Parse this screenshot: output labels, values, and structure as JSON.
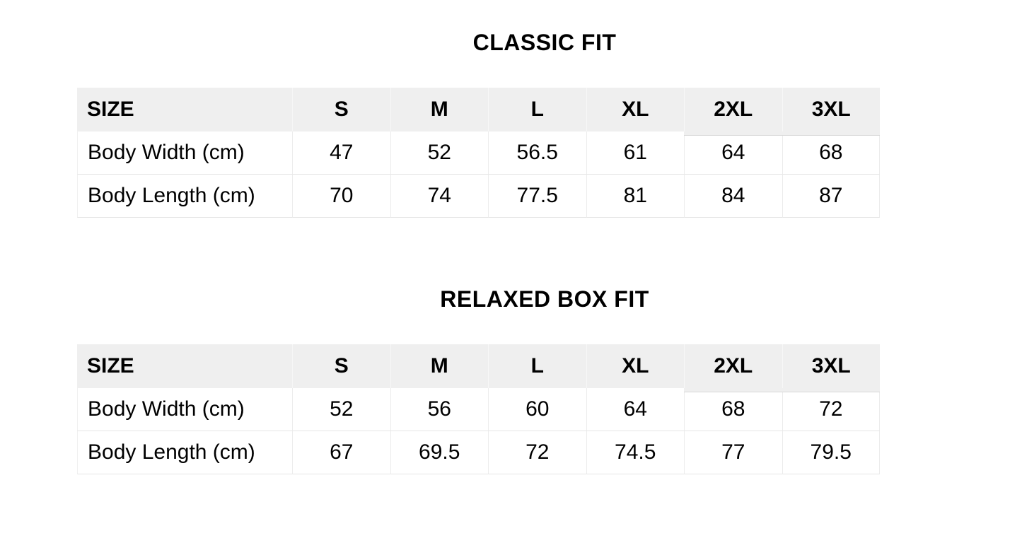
{
  "sections": [
    {
      "title": "CLASSIC FIT",
      "table": {
        "corner_header": "SIZE",
        "size_columns": [
          "S",
          "M",
          "L",
          "XL",
          "2XL",
          "3XL"
        ],
        "rows": [
          {
            "label": "Body Width (cm)",
            "values": [
              "47",
              "52",
              "56.5",
              "61",
              "64",
              "68"
            ]
          },
          {
            "label": "Body Length (cm)",
            "values": [
              "70",
              "74",
              "77.5",
              "81",
              "84",
              "87"
            ]
          }
        ]
      }
    },
    {
      "title": "RELAXED BOX FIT",
      "table": {
        "corner_header": "SIZE",
        "size_columns": [
          "S",
          "M",
          "L",
          "XL",
          "2XL",
          "3XL"
        ],
        "rows": [
          {
            "label": "Body Width (cm)",
            "values": [
              "52",
              "56",
              "60",
              "64",
              "68",
              "72"
            ]
          },
          {
            "label": "Body Length (cm)",
            "values": [
              "67",
              "69.5",
              "72",
              "74.5",
              "77",
              "79.5"
            ]
          }
        ]
      }
    }
  ],
  "colors": {
    "page_background": "#ffffff",
    "header_background": "#efefef",
    "row_border": "#e5e5e5",
    "column_border": "#ececec",
    "header_extension_border": "#d8d8d8",
    "text": "#000000"
  },
  "chart_data": [
    {
      "type": "table",
      "title": "CLASSIC FIT",
      "columns": [
        "SIZE",
        "S",
        "M",
        "L",
        "XL",
        "2XL",
        "3XL"
      ],
      "rows": [
        [
          "Body Width (cm)",
          47,
          52,
          56.5,
          61,
          64,
          68
        ],
        [
          "Body Length (cm)",
          70,
          74,
          77.5,
          81,
          84,
          87
        ]
      ]
    },
    {
      "type": "table",
      "title": "RELAXED BOX FIT",
      "columns": [
        "SIZE",
        "S",
        "M",
        "L",
        "XL",
        "2XL",
        "3XL"
      ],
      "rows": [
        [
          "Body Width (cm)",
          52,
          56,
          60,
          64,
          68,
          72
        ],
        [
          "Body Length (cm)",
          67,
          69.5,
          72,
          74.5,
          77,
          79.5
        ]
      ]
    }
  ]
}
